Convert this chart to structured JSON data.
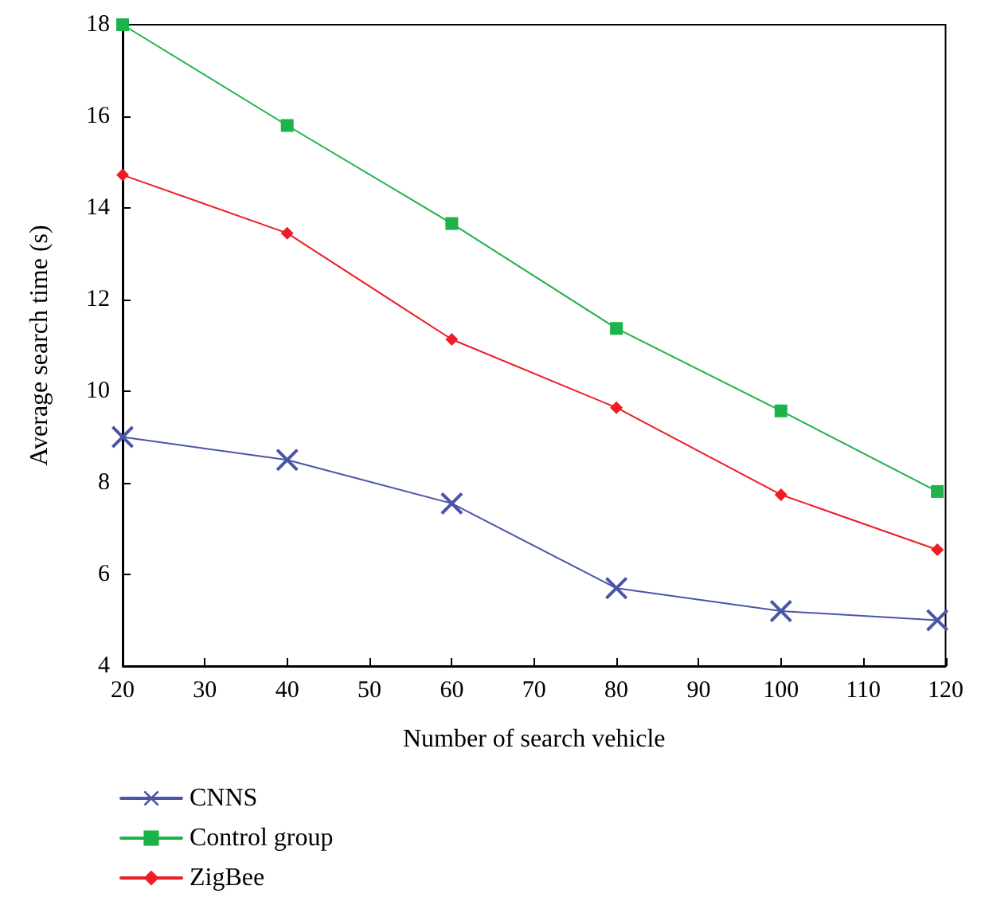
{
  "chart_data": {
    "type": "line",
    "xlabel": "Number of search vehicle",
    "ylabel": "Average search time (s)",
    "x": [
      20,
      40,
      60,
      80,
      100,
      119
    ],
    "xlim": [
      20,
      120
    ],
    "xticks": [
      20,
      30,
      40,
      50,
      60,
      70,
      80,
      90,
      100,
      110,
      120
    ],
    "ylim": [
      4,
      18
    ],
    "yticks": [
      4,
      6,
      8,
      10,
      12,
      14,
      16,
      18
    ],
    "grid": false,
    "legend": "bottom left",
    "series": [
      {
        "name": "CNNS",
        "color": "#4a55a8",
        "marker": "cross",
        "values": [
          9.0,
          8.5,
          7.55,
          5.7,
          5.2,
          5.0
        ]
      },
      {
        "name": "Control group",
        "color": "#1db24a",
        "marker": "square",
        "values": [
          18.0,
          15.8,
          13.66,
          11.37,
          9.57,
          7.81
        ]
      },
      {
        "name": "ZigBee",
        "color": "#ee1c25",
        "marker": "diamond",
        "values": [
          14.72,
          13.45,
          11.13,
          9.64,
          7.74,
          6.54
        ]
      }
    ]
  }
}
